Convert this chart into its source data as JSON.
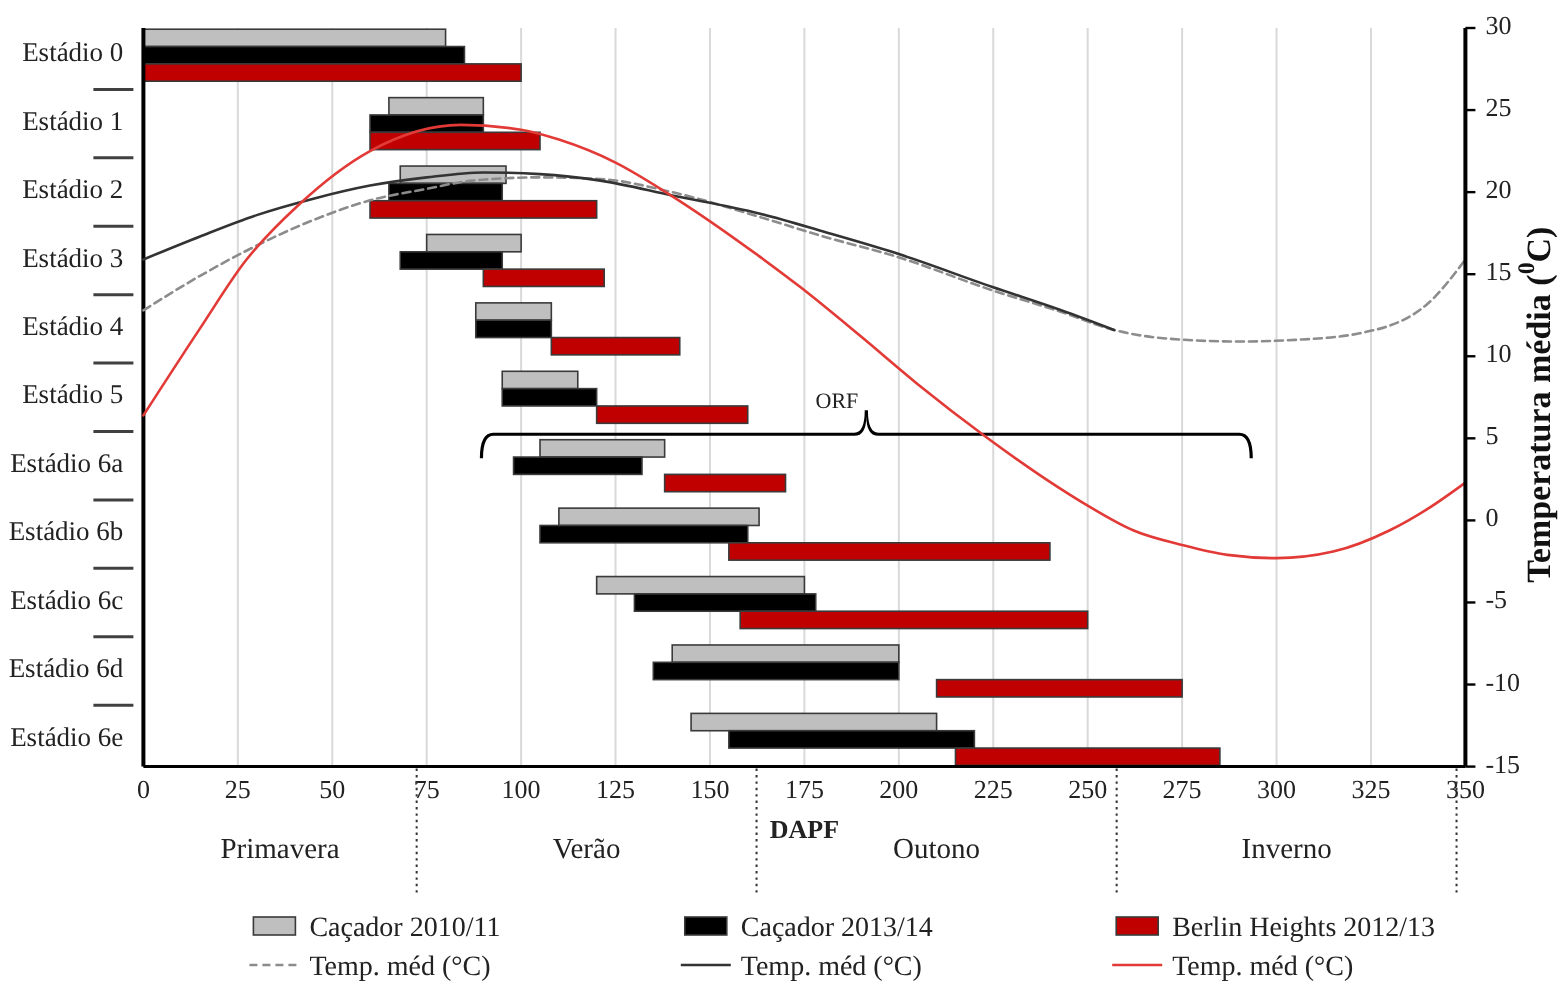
{
  "chart_data": [
    {
      "type": "bar",
      "orientation": "horizontal",
      "categories": [
        "Estádio 0",
        "Estádio 1",
        "Estádio 2",
        "Estádio 3",
        "Estádio 4",
        "Estádio 5",
        "Estádio 6a",
        "Estádio 6b",
        "Estádio 6c",
        "Estádio 6d",
        "Estádio 6e"
      ],
      "xlabel": "DAPF",
      "xlim": [
        0,
        350
      ],
      "xticks": [
        0,
        25,
        50,
        75,
        100,
        125,
        150,
        175,
        200,
        225,
        250,
        275,
        300,
        325,
        350
      ],
      "grid": "x",
      "legend": "bottom",
      "series": [
        {
          "name": "Caçador 2010/11",
          "color": "#bfbfbf",
          "base": [
            0,
            65,
            68,
            75,
            88,
            95,
            105,
            110,
            120,
            140,
            145
          ],
          "values": [
            80,
            25,
            28,
            25,
            20,
            20,
            33,
            53,
            55,
            60,
            65
          ]
        },
        {
          "name": "Caçador 2013/14",
          "color": "#000000",
          "base": [
            0,
            60,
            65,
            68,
            88,
            95,
            98,
            105,
            130,
            135,
            155
          ],
          "values": [
            85,
            30,
            30,
            27,
            20,
            25,
            34,
            55,
            48,
            65,
            65
          ]
        },
        {
          "name": "Berlin Heights 2012/13",
          "color": "#c00000",
          "base": [
            0,
            60,
            60,
            90,
            108,
            120,
            138,
            155,
            158,
            210,
            215
          ],
          "values": [
            100,
            45,
            60,
            32,
            34,
            40,
            32,
            85,
            92,
            65,
            70
          ]
        }
      ],
      "annotations": [
        "Primavera",
        "Verão",
        "Outono",
        "Inverno",
        "ORF"
      ]
    },
    {
      "type": "line",
      "ylabel": "Temperatura média ($^{0}$C)",
      "xlim": [
        0,
        350
      ],
      "ylim": [
        -15,
        30
      ],
      "yticks": [
        -15,
        -10,
        -5,
        0,
        5,
        10,
        15,
        20,
        25,
        30
      ],
      "tick_labels": "y",
      "legend": "bottom",
      "series": [
        {
          "name": "Temp. méd (°C)",
          "color": "#8c8c8c",
          "line_style": "dashed",
          "x": [
            0,
            15,
            27,
            45,
            60,
            75,
            87,
            105,
            121,
            140,
            163,
            180,
            199,
            225,
            243,
            257,
            270,
            290,
            305,
            322,
            340,
            350
          ],
          "values": [
            12.8,
            14.9,
            16.4,
            18.3,
            19.5,
            20.2,
            20.7,
            20.9,
            20.8,
            20.0,
            18.5,
            17.3,
            16.1,
            14.0,
            12.7,
            11.6,
            11.1,
            10.9,
            11.0,
            11.4,
            13.2,
            15.9
          ]
        },
        {
          "name": "Temp. méd (°C)",
          "color": "#333333",
          "line_style": "solid",
          "x": [
            0,
            15,
            30,
            45,
            60,
            75,
            90,
            105,
            121,
            140,
            163,
            180,
            199,
            225,
            243,
            257
          ],
          "values": [
            15.9,
            17.3,
            18.6,
            19.6,
            20.4,
            20.9,
            21.2,
            21.1,
            20.7,
            19.8,
            18.7,
            17.6,
            16.3,
            14.2,
            12.8,
            11.6
          ]
        },
        {
          "name": "Temp. méd (°C)",
          "color": "#e23a36",
          "line_style": "solid",
          "x": [
            0,
            15,
            27,
            41,
            60,
            84,
            100,
            110,
            125,
            139,
            163,
            174,
            190,
            205,
            223,
            239,
            250,
            262,
            275,
            287,
            300,
            315,
            330,
            340,
            350
          ],
          "values": [
            6.4,
            11.7,
            15.8,
            19.2,
            22.5,
            24.1,
            23.8,
            23.2,
            21.8,
            19.9,
            16.1,
            14.2,
            11.2,
            8.3,
            5.1,
            2.5,
            0.9,
            -0.6,
            -1.5,
            -2.1,
            -2.3,
            -1.9,
            -0.6,
            0.7,
            2.3
          ]
        }
      ]
    }
  ]
}
